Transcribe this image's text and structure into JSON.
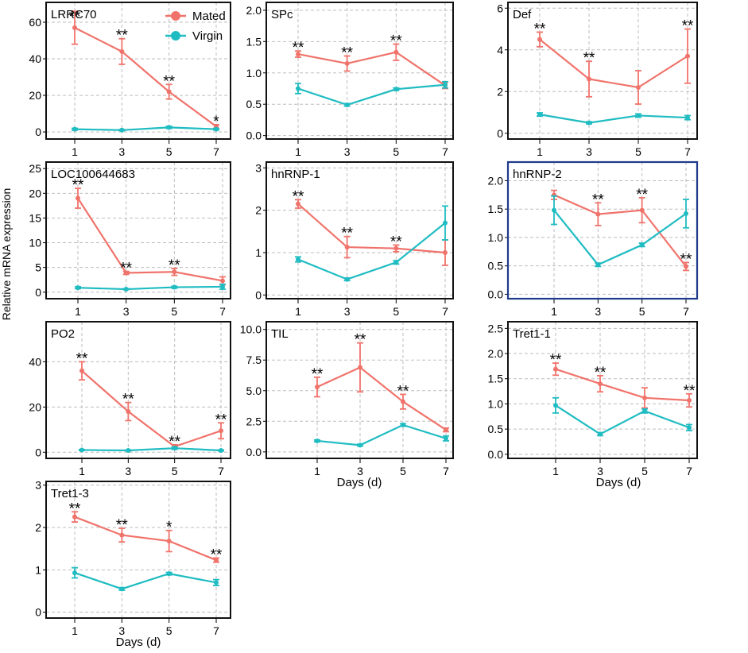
{
  "figure": {
    "y_axis_label": "Relative mRNA expression",
    "x_axis_label": "Days (d)",
    "legend": [
      {
        "name": "Mated",
        "color": "#F0736B"
      },
      {
        "name": "Virgin",
        "color": "#1FBCC2"
      }
    ]
  },
  "chart_data": [
    {
      "type": "line",
      "title": "LRRC70",
      "categories": [
        "1",
        "3",
        "5",
        "7"
      ],
      "yticks": [
        "0",
        "20",
        "40",
        "60"
      ],
      "ylim": [
        -3,
        70
      ],
      "series": [
        {
          "name": "Mated",
          "values": [
            57,
            44,
            22,
            3
          ],
          "errors": [
            9,
            7,
            4,
            1
          ],
          "significance": [
            "**",
            "**",
            "**",
            "*"
          ]
        },
        {
          "name": "Virgin",
          "values": [
            1.5,
            1,
            2.5,
            1.5
          ],
          "errors": [
            0.5,
            0.3,
            0.6,
            0.4
          ]
        }
      ]
    },
    {
      "type": "line",
      "title": "SPc",
      "categories": [
        "1",
        "3",
        "5",
        "7"
      ],
      "yticks": [
        "0.0",
        "0.5",
        "1.0",
        "1.5",
        "2.0"
      ],
      "ylim": [
        -0.03,
        2.1
      ],
      "series": [
        {
          "name": "Mated",
          "values": [
            1.3,
            1.15,
            1.33,
            0.8
          ],
          "errors": [
            0.05,
            0.12,
            0.13,
            0.05
          ],
          "significance": [
            "**",
            "**",
            "**",
            ""
          ]
        },
        {
          "name": "Virgin",
          "values": [
            0.75,
            0.49,
            0.74,
            0.81
          ],
          "errors": [
            0.08,
            0.02,
            0.02,
            0.05
          ]
        }
      ]
    },
    {
      "type": "line",
      "title": "Def",
      "categories": [
        "1",
        "3",
        "5",
        "7"
      ],
      "yticks": [
        "0",
        "2",
        "4",
        "6"
      ],
      "ylim": [
        -0.2,
        6.2
      ],
      "series": [
        {
          "name": "Mated",
          "values": [
            4.5,
            2.6,
            2.2,
            3.7
          ],
          "errors": [
            0.35,
            0.85,
            0.8,
            1.3
          ],
          "significance": [
            "**",
            "**",
            "",
            "**"
          ]
        },
        {
          "name": "Virgin",
          "values": [
            0.9,
            0.5,
            0.85,
            0.75
          ],
          "errors": [
            0.08,
            0.05,
            0.08,
            0.1
          ]
        }
      ]
    },
    {
      "type": "line",
      "title": "LOC100644683",
      "categories": [
        "1",
        "3",
        "5",
        "7"
      ],
      "yticks": [
        "0",
        "5",
        "10",
        "15",
        "20",
        "25"
      ],
      "ylim": [
        -1,
        26
      ],
      "series": [
        {
          "name": "Mated",
          "values": [
            19,
            3.9,
            4.1,
            2.3
          ],
          "errors": [
            2,
            0.3,
            0.7,
            0.8
          ],
          "significance": [
            "**",
            "**",
            "**",
            ""
          ]
        },
        {
          "name": "Virgin",
          "values": [
            0.9,
            0.6,
            1,
            1.1
          ],
          "errors": [
            0.2,
            0.1,
            0.2,
            0.5
          ]
        }
      ]
    },
    {
      "type": "line",
      "title": "hnRNP-1",
      "categories": [
        "1",
        "3",
        "5",
        "7"
      ],
      "yticks": [
        "0",
        "1",
        "2",
        "3"
      ],
      "ylim": [
        -0.05,
        3.1
      ],
      "series": [
        {
          "name": "Mated",
          "values": [
            2.15,
            1.13,
            1.1,
            1
          ],
          "errors": [
            0.1,
            0.25,
            0.08,
            0.3
          ],
          "significance": [
            "**",
            "**",
            "**",
            ""
          ]
        },
        {
          "name": "Virgin",
          "values": [
            0.84,
            0.37,
            0.77,
            1.7
          ],
          "errors": [
            0.06,
            0.03,
            0.04,
            0.4
          ]
        }
      ]
    },
    {
      "type": "line",
      "title": "hnRNP-2",
      "categories": [
        "1",
        "3",
        "5",
        "7"
      ],
      "yticks": [
        "0.0",
        "0.5",
        "1.0",
        "1.5",
        "2.0"
      ],
      "ylim": [
        -0.05,
        2.3
      ],
      "series": [
        {
          "name": "Mated",
          "values": [
            1.75,
            1.41,
            1.48,
            0.49
          ],
          "errors": [
            0.08,
            0.2,
            0.22,
            0.07
          ],
          "significance": [
            "",
            "**",
            "**",
            "**"
          ]
        },
        {
          "name": "Virgin",
          "values": [
            1.48,
            0.52,
            0.87,
            1.42
          ],
          "errors": [
            0.25,
            0.03,
            0.03,
            0.25
          ]
        }
      ]
    },
    {
      "type": "line",
      "title": "PO2",
      "categories": [
        "1",
        "3",
        "5",
        "7"
      ],
      "yticks": [
        "0",
        "20",
        "40"
      ],
      "ylim": [
        -2,
        57
      ],
      "series": [
        {
          "name": "Mated",
          "values": [
            36,
            18,
            2.5,
            9.5
          ],
          "errors": [
            4,
            4,
            0.8,
            3.5
          ],
          "significance": [
            "**",
            "**",
            "**",
            "**"
          ]
        },
        {
          "name": "Virgin",
          "values": [
            1,
            0.8,
            1.8,
            0.8
          ],
          "errors": [
            0.2,
            0.2,
            0.5,
            0.2
          ]
        }
      ]
    },
    {
      "type": "line",
      "title": "TIL",
      "categories": [
        "1",
        "3",
        "5",
        "7"
      ],
      "yticks": [
        "0.0",
        "2.5",
        "5.0",
        "7.5",
        "10.0"
      ],
      "ylim": [
        -0.4,
        10.5
      ],
      "series": [
        {
          "name": "Mated",
          "values": [
            5.3,
            6.9,
            4.1,
            1.8
          ],
          "errors": [
            0.8,
            2,
            0.6,
            0.15
          ],
          "significance": [
            "**",
            "**",
            "**",
            ""
          ]
        },
        {
          "name": "Virgin",
          "values": [
            0.9,
            0.55,
            2.2,
            1.1
          ],
          "errors": [
            0.07,
            0.07,
            0.1,
            0.2
          ]
        }
      ]
    },
    {
      "type": "line",
      "title": "Tret1-1",
      "categories": [
        "1",
        "3",
        "5",
        "7"
      ],
      "yticks": [
        "0.0",
        "0.5",
        "1.0",
        "1.5",
        "2.0",
        "2.5"
      ],
      "ylim": [
        -0.05,
        2.6
      ],
      "series": [
        {
          "name": "Mated",
          "values": [
            1.69,
            1.4,
            1.12,
            1.07
          ],
          "errors": [
            0.12,
            0.16,
            0.2,
            0.13
          ],
          "significance": [
            "**",
            "**",
            "",
            "**"
          ]
        },
        {
          "name": "Virgin",
          "values": [
            0.97,
            0.4,
            0.86,
            0.53
          ],
          "errors": [
            0.15,
            0.03,
            0.04,
            0.06
          ]
        }
      ]
    },
    {
      "type": "line",
      "title": "Tret1-3",
      "categories": [
        "1",
        "3",
        "5",
        "7"
      ],
      "yticks": [
        "0",
        "1",
        "2",
        "3"
      ],
      "ylim": [
        -0.1,
        3.05
      ],
      "series": [
        {
          "name": "Mated",
          "values": [
            2.25,
            1.82,
            1.68,
            1.23
          ],
          "errors": [
            0.12,
            0.16,
            0.25,
            0.05
          ],
          "significance": [
            "**",
            "**",
            "*",
            "**"
          ]
        },
        {
          "name": "Virgin",
          "values": [
            0.93,
            0.55,
            0.91,
            0.7
          ],
          "errors": [
            0.12,
            0.03,
            0.03,
            0.07
          ]
        }
      ]
    }
  ]
}
